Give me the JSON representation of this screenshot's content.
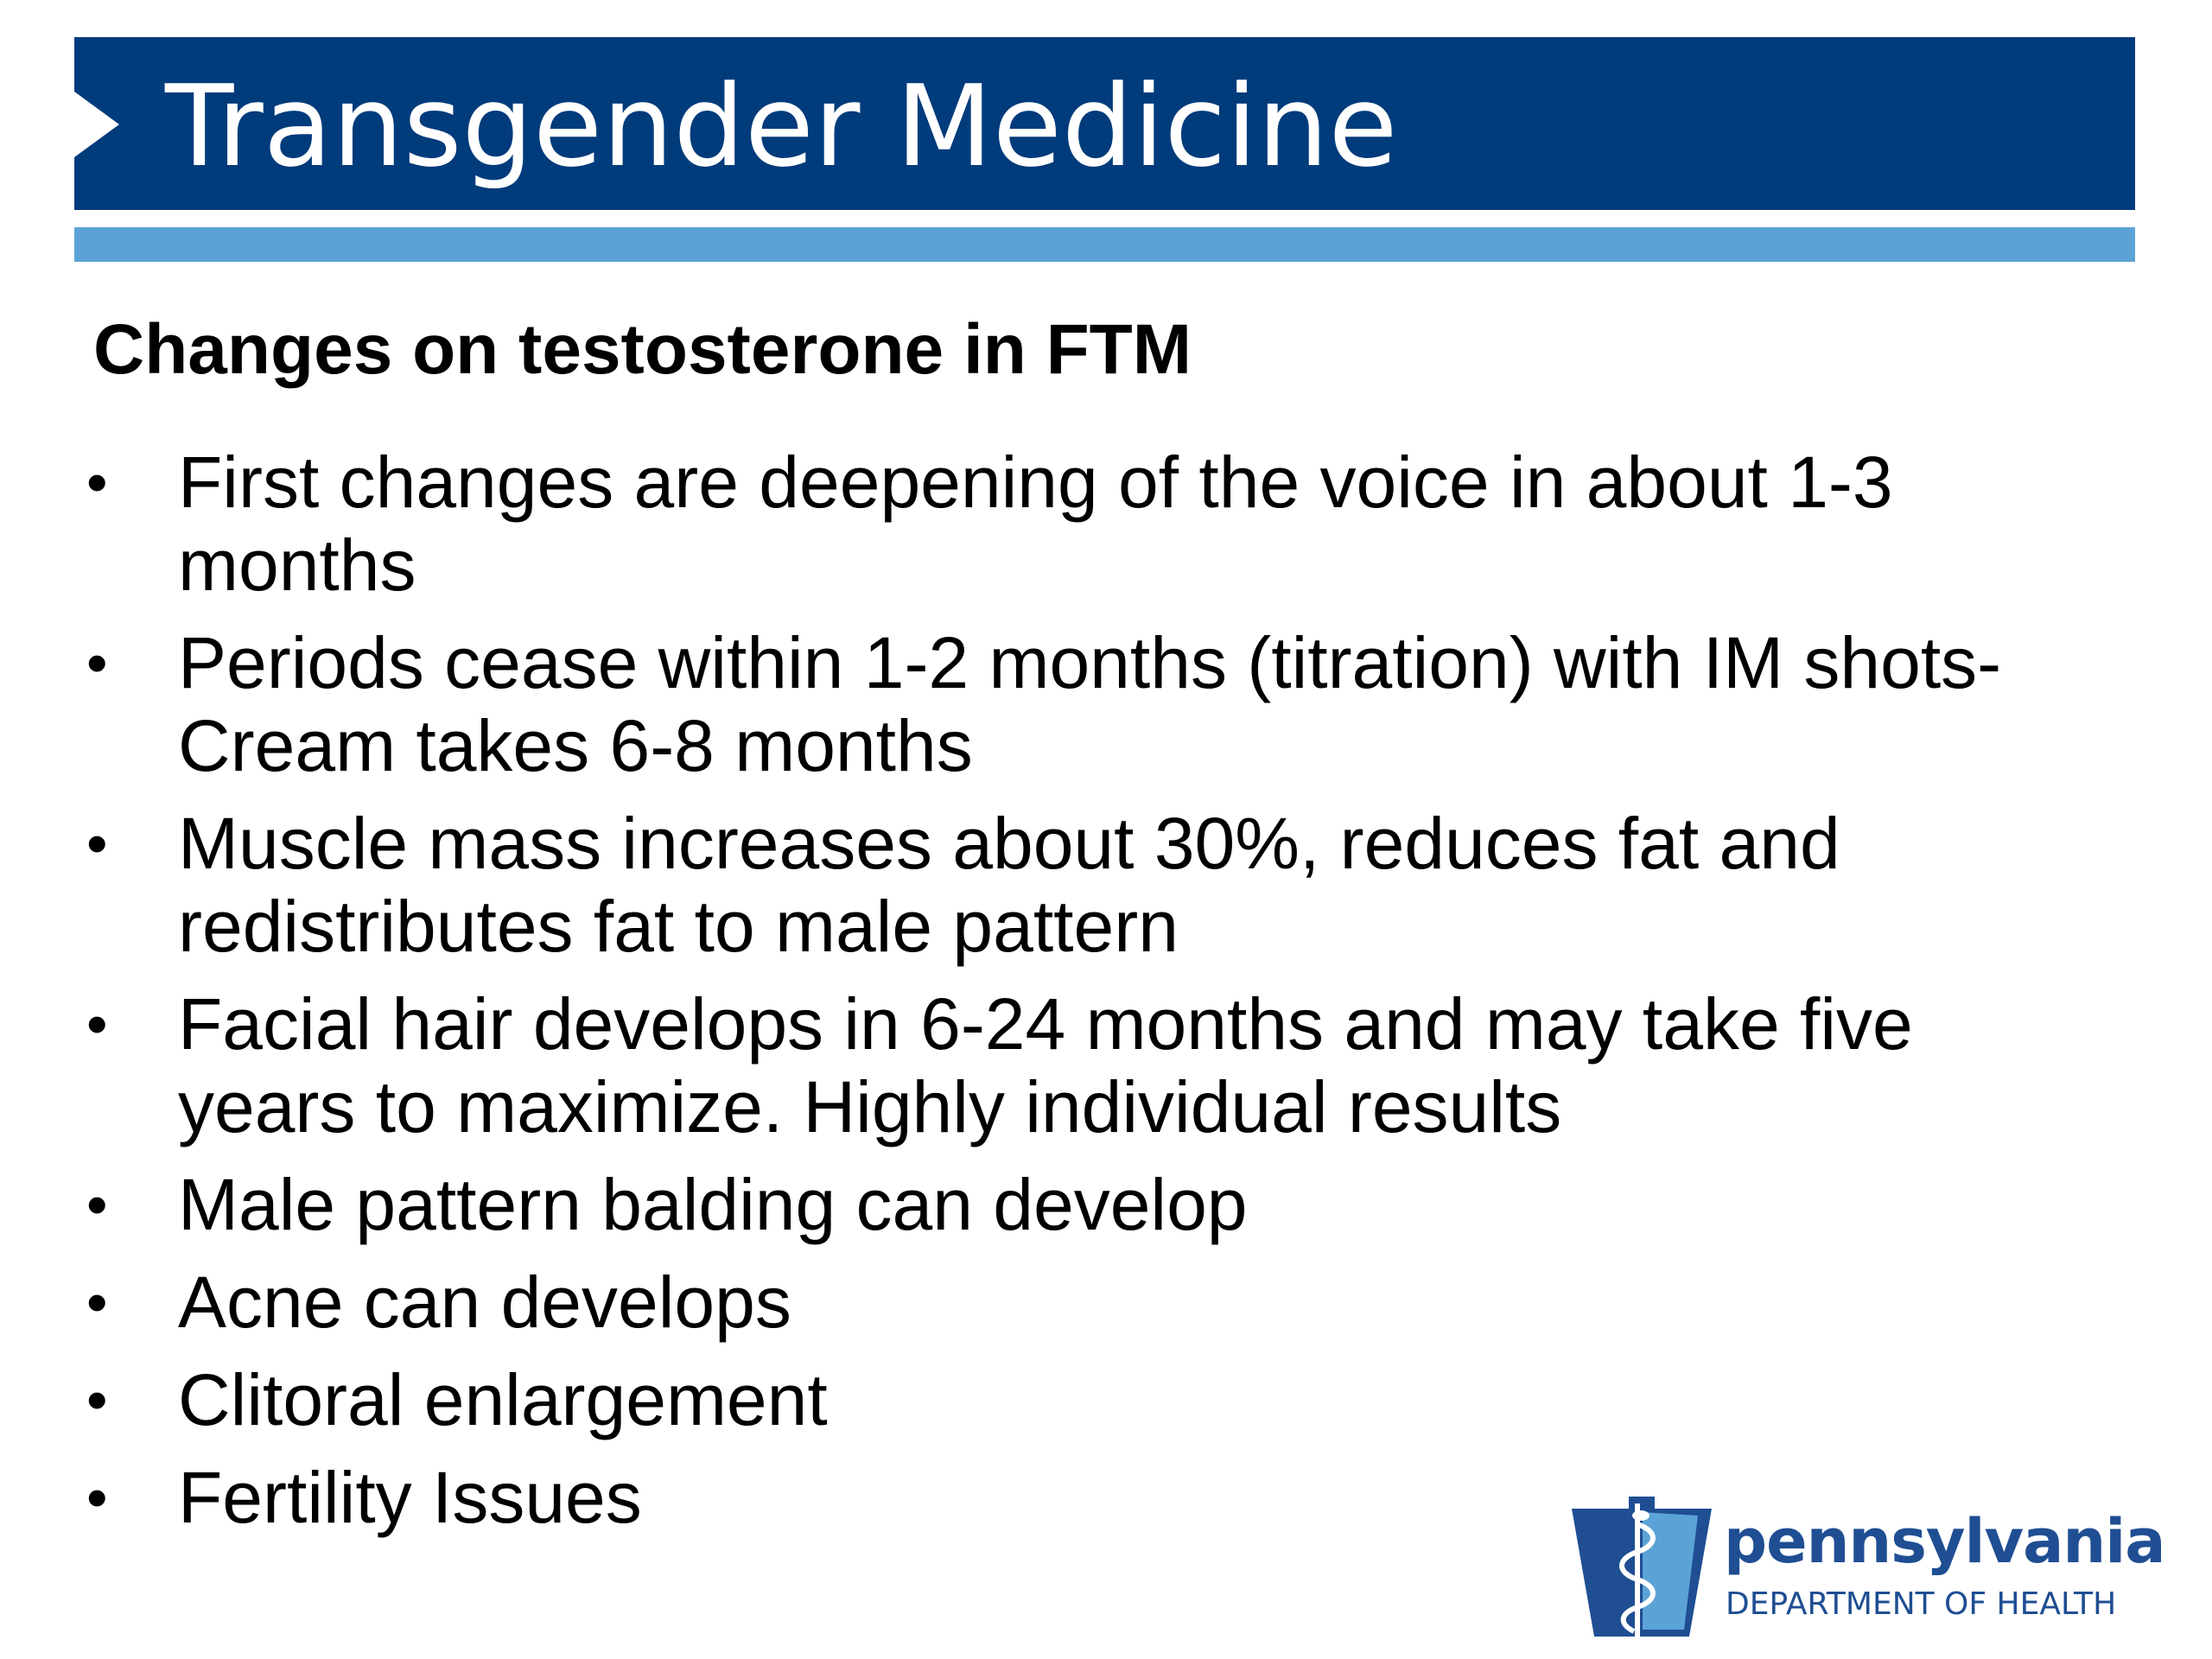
{
  "header": {
    "title": "Transgender Medicine",
    "colors": {
      "title_bar": "#003b7b",
      "accent_bar": "#5ba3d6",
      "title_text": "#ffffff"
    }
  },
  "content": {
    "subtitle": "Changes on testosterone in FTM",
    "bullet_symbol": "•",
    "bullets": [
      {
        "lines": [
          "First changes are deepening of the voice in about 1-3",
          "months"
        ]
      },
      {
        "lines": [
          "Periods cease within 1-2 months (titration) with IM shots-",
          "Cream takes 6-8 months"
        ]
      },
      {
        "lines": [
          "Muscle mass increases about 30%, reduces fat and",
          "redistributes fat to male pattern"
        ]
      },
      {
        "lines": [
          "Facial hair develops in 6-24 months and may take five",
          "years to maximize.  Highly individual results"
        ]
      },
      {
        "lines": [
          "Male pattern balding can develop"
        ]
      },
      {
        "lines": [
          "Acne can develops"
        ]
      },
      {
        "lines": [
          "Clitoral enlargement"
        ]
      },
      {
        "lines": [
          "Fertility Issues"
        ]
      }
    ]
  },
  "logo": {
    "name": "pennsylvania",
    "subtitle": "DEPARTMENT OF HEALTH",
    "icon": "keystone-caduceus-icon",
    "colors": {
      "keystone_dark": "#1f4e93",
      "keystone_light": "#5ba3d6",
      "text": "#1f4e93"
    }
  }
}
